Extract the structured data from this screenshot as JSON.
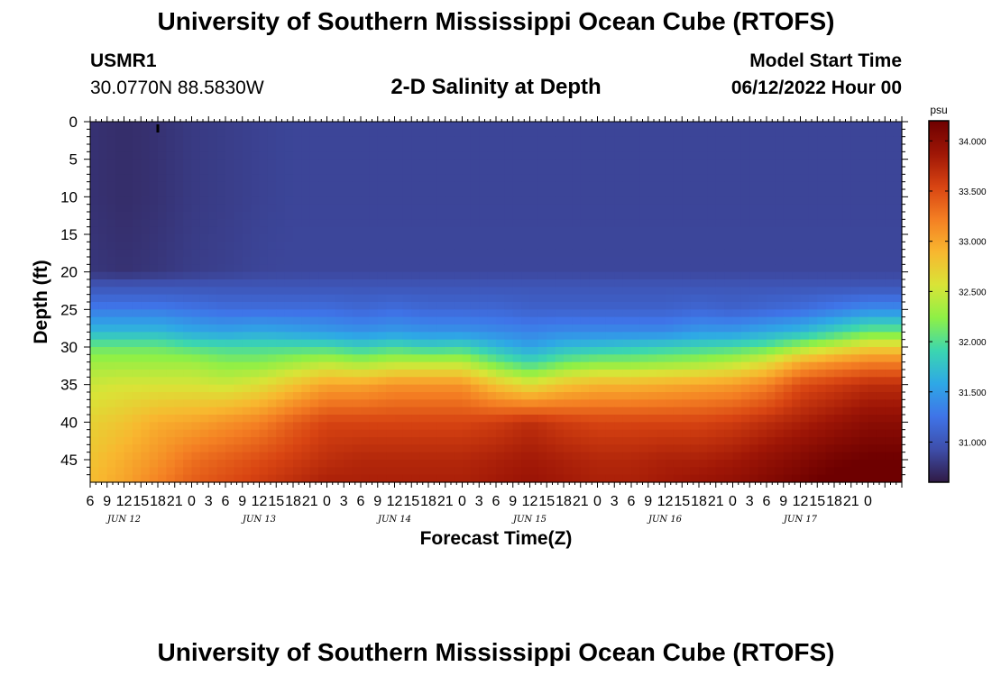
{
  "header": {
    "title": "University of Southern Mississippi Ocean Cube (RTOFS)",
    "station_id": "USMR1",
    "station_coords": "30.0770N  88.5830W",
    "panel_title": "2-D Salinity at Depth",
    "model_label": "Model Start Time",
    "model_value": "06/12/2022 Hour 00"
  },
  "footer": {
    "title": "University of Southern Mississippi Ocean Cube (RTOFS)"
  },
  "chart_data": {
    "type": "heatmap",
    "xlabel": "Forecast Time(Z)",
    "ylabel": "Depth (ft)",
    "colorbar_label": "psu",
    "colorbar_ticks": [
      "31.000",
      "31.500",
      "32.000",
      "32.500",
      "33.000",
      "33.500",
      "34.000"
    ],
    "colorbar_range": [
      30.6,
      34.2
    ],
    "y_ticks": [
      "0",
      "5",
      "10",
      "15",
      "20",
      "25",
      "30",
      "35",
      "40",
      "45"
    ],
    "ylim": [
      0,
      48
    ],
    "x_ticks": [
      "6",
      "9",
      "12",
      "15",
      "18",
      "21",
      "0",
      "3",
      "6",
      "9",
      "12",
      "15",
      "18",
      "21",
      "0",
      "3",
      "6",
      "9",
      "12",
      "15",
      "18",
      "21",
      "0",
      "3",
      "6",
      "9",
      "12",
      "15",
      "18",
      "21",
      "0",
      "3",
      "6",
      "9",
      "12",
      "15",
      "18",
      "21",
      "0",
      "3",
      "6",
      "9",
      "12",
      "15",
      "18",
      "21",
      "0"
    ],
    "x_day_labels": [
      {
        "label": "JUN 12",
        "tick_index": 2
      },
      {
        "label": "JUN 13",
        "tick_index": 10
      },
      {
        "label": "JUN 14",
        "tick_index": 18
      },
      {
        "label": "JUN 15",
        "tick_index": 26
      },
      {
        "label": "JUN 16",
        "tick_index": 34
      },
      {
        "label": "JUN 17",
        "tick_index": 42
      }
    ],
    "hours": [
      6,
      12,
      18,
      24,
      30,
      36,
      42,
      48,
      54,
      60,
      66,
      72,
      78,
      84,
      90,
      96,
      102,
      108,
      114,
      120,
      126,
      132,
      138,
      144
    ],
    "depths_ft": [
      0,
      10,
      20,
      22,
      25,
      28,
      30,
      32,
      35,
      40,
      45,
      48
    ],
    "salinity_psu": [
      [
        30.75,
        30.72,
        30.75,
        30.8,
        30.82,
        30.85,
        30.87,
        30.87,
        30.87,
        30.87,
        30.87,
        30.87,
        30.87,
        30.87,
        30.87,
        30.87,
        30.87,
        30.87,
        30.87,
        30.87,
        30.87,
        30.87,
        30.87,
        30.87
      ],
      [
        30.75,
        30.72,
        30.75,
        30.8,
        30.82,
        30.85,
        30.87,
        30.87,
        30.87,
        30.87,
        30.87,
        30.87,
        30.87,
        30.87,
        30.87,
        30.87,
        30.87,
        30.87,
        30.87,
        30.87,
        30.87,
        30.87,
        30.87,
        30.87
      ],
      [
        30.78,
        30.75,
        30.78,
        30.82,
        30.84,
        30.87,
        30.88,
        30.88,
        30.88,
        30.88,
        30.88,
        30.88,
        30.88,
        30.88,
        30.88,
        30.88,
        30.88,
        30.88,
        30.88,
        30.88,
        30.88,
        30.88,
        30.88,
        30.88
      ],
      [
        31.0,
        31.0,
        31.0,
        31.0,
        31.0,
        31.0,
        31.0,
        31.0,
        31.0,
        31.0,
        31.0,
        31.0,
        31.0,
        31.0,
        31.0,
        31.0,
        31.0,
        31.0,
        31.0,
        31.0,
        31.0,
        31.0,
        31.0,
        31.0
      ],
      [
        31.3,
        31.3,
        31.3,
        31.25,
        31.2,
        31.2,
        31.2,
        31.2,
        31.15,
        31.2,
        31.15,
        31.15,
        31.15,
        31.1,
        31.1,
        31.1,
        31.1,
        31.1,
        31.15,
        31.1,
        31.15,
        31.2,
        31.3,
        31.4
      ],
      [
        31.7,
        31.7,
        31.7,
        31.6,
        31.55,
        31.6,
        31.55,
        31.5,
        31.45,
        31.5,
        31.45,
        31.45,
        31.4,
        31.35,
        31.4,
        31.4,
        31.4,
        31.4,
        31.5,
        31.5,
        31.6,
        31.7,
        31.9,
        32.1
      ],
      [
        32.1,
        32.1,
        32.1,
        32.0,
        31.95,
        31.95,
        31.95,
        31.95,
        31.85,
        31.95,
        31.85,
        31.9,
        31.7,
        31.55,
        31.7,
        31.75,
        31.8,
        31.85,
        31.9,
        31.95,
        32.05,
        32.3,
        32.5,
        32.7
      ],
      [
        32.3,
        32.3,
        32.3,
        32.3,
        32.2,
        32.2,
        32.3,
        32.4,
        32.3,
        32.4,
        32.4,
        32.4,
        32.1,
        31.9,
        32.1,
        32.2,
        32.2,
        32.25,
        32.3,
        32.4,
        32.6,
        32.95,
        33.1,
        33.2
      ],
      [
        32.5,
        32.55,
        32.55,
        32.55,
        32.5,
        32.6,
        32.8,
        33.0,
        33.0,
        33.1,
        33.1,
        33.1,
        32.8,
        32.6,
        32.8,
        32.9,
        32.9,
        32.95,
        33.0,
        33.05,
        33.2,
        33.5,
        33.6,
        33.7
      ],
      [
        32.7,
        32.8,
        32.95,
        33.0,
        33.1,
        33.2,
        33.4,
        33.55,
        33.55,
        33.55,
        33.55,
        33.55,
        33.6,
        33.7,
        33.6,
        33.55,
        33.55,
        33.55,
        33.55,
        33.6,
        33.7,
        33.8,
        33.9,
        34.0
      ],
      [
        32.8,
        32.95,
        33.1,
        33.3,
        33.4,
        33.5,
        33.6,
        33.7,
        33.75,
        33.75,
        33.75,
        33.75,
        33.8,
        33.85,
        33.8,
        33.75,
        33.75,
        33.8,
        33.8,
        33.85,
        33.95,
        34.05,
        34.15,
        34.2
      ],
      [
        32.85,
        33.0,
        33.2,
        33.4,
        33.5,
        33.6,
        33.7,
        33.8,
        33.8,
        33.8,
        33.8,
        33.8,
        33.85,
        33.9,
        33.85,
        33.8,
        33.8,
        33.85,
        33.9,
        33.95,
        34.05,
        34.15,
        34.25,
        34.3
      ]
    ],
    "markers": [
      {
        "hour": 18,
        "depth_ft": 1
      }
    ],
    "colormap": [
      "#301a44",
      "#3e4eaa",
      "#3f74e8",
      "#2ea8e6",
      "#3bd6b0",
      "#8ef046",
      "#d9e437",
      "#f8b72f",
      "#f47f23",
      "#d84412",
      "#9e1606",
      "#6e0000"
    ]
  }
}
